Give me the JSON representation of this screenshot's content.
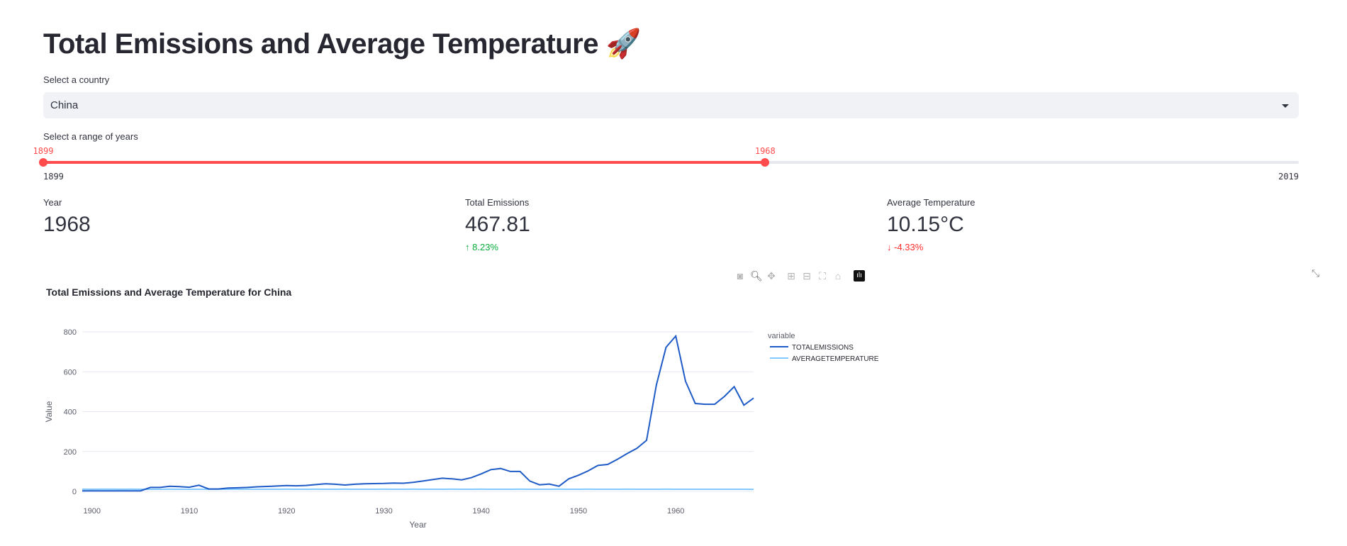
{
  "page": {
    "title": "Total Emissions and Average Temperature",
    "title_icon": "rocket-emoji",
    "title_emoji": "🚀"
  },
  "country_select": {
    "label": "Select a country",
    "value": "China"
  },
  "year_slider": {
    "label": "Select a range of years",
    "min": 1899,
    "max": 2019,
    "low": 1899,
    "high": 1968,
    "min_label": "1899",
    "max_label": "2019",
    "low_label": "1899",
    "high_label": "1968",
    "accent": "#ff4b4b"
  },
  "metrics": [
    {
      "label": "Year",
      "value": "1968",
      "delta": ""
    },
    {
      "label": "Total Emissions",
      "value": "467.81",
      "delta": "8.23%",
      "delta_dir": "up",
      "delta_color": "#09ab3b"
    },
    {
      "label": "Average Temperature",
      "value": "10.15°C",
      "delta": "-4.33%",
      "delta_dir": "down",
      "delta_color": "#ff2b2b"
    }
  ],
  "toolbar": [
    "camera-icon",
    "zoom-icon",
    "pan-icon",
    "zoom-in-icon",
    "zoom-out-icon",
    "autoscale-icon",
    "reset-axes-icon",
    "plotly-logo-icon"
  ],
  "chart_data": {
    "type": "line",
    "title": "Total Emissions and Average Temperature for China",
    "xlabel": "Year",
    "ylabel": "Value",
    "xlim": [
      1899,
      1968
    ],
    "ylim": [
      -70,
      900
    ],
    "xticks": [
      1900,
      1910,
      1920,
      1930,
      1940,
      1950,
      1960
    ],
    "yticks": [
      0,
      200,
      400,
      600,
      800
    ],
    "grid": true,
    "legend": {
      "title": "variable",
      "placement": "right"
    },
    "x": [
      1899,
      1900,
      1901,
      1902,
      1903,
      1904,
      1905,
      1906,
      1907,
      1908,
      1909,
      1910,
      1911,
      1912,
      1913,
      1914,
      1915,
      1916,
      1917,
      1918,
      1919,
      1920,
      1921,
      1922,
      1923,
      1924,
      1925,
      1926,
      1927,
      1928,
      1929,
      1930,
      1931,
      1932,
      1933,
      1934,
      1935,
      1936,
      1937,
      1938,
      1939,
      1940,
      1941,
      1942,
      1943,
      1944,
      1945,
      1946,
      1947,
      1948,
      1949,
      1950,
      1951,
      1952,
      1953,
      1954,
      1955,
      1956,
      1957,
      1958,
      1959,
      1960,
      1961,
      1962,
      1963,
      1964,
      1965,
      1966,
      1967,
      1968
    ],
    "series": [
      {
        "name": "TOTALEMISSIONS",
        "color": "#1f5bc6",
        "values": [
          3,
          3,
          3,
          3,
          3,
          3,
          3,
          20,
          20,
          26,
          24,
          21,
          31,
          12,
          12,
          17,
          18,
          20,
          23,
          25,
          27,
          29,
          28,
          30,
          34,
          38,
          36,
          32,
          36,
          38,
          39,
          40,
          42,
          41,
          45,
          52,
          59,
          66,
          63,
          58,
          69,
          88,
          109,
          115,
          100,
          100,
          52,
          33,
          37,
          26,
          63,
          81,
          103,
          130,
          135,
          161,
          190,
          216,
          256,
          533,
          723,
          779,
          553,
          441,
          437,
          437,
          476,
          525,
          432.2,
          467.81
        ]
      },
      {
        "name": "AVERAGETEMPERATURE",
        "color": "#83c9ff",
        "values": [
          10.9,
          10.8,
          10.9,
          11,
          10.8,
          10.9,
          10.7,
          10.8,
          10.6,
          10.9,
          10.7,
          10.8,
          10.7,
          10.8,
          10.9,
          10.7,
          10.8,
          10.9,
          10.6,
          10.7,
          10.8,
          10.9,
          10.8,
          10.7,
          10.9,
          10.8,
          10.7,
          10.9,
          10.8,
          10.7,
          10.8,
          10.9,
          10.8,
          10.7,
          10.9,
          10.8,
          10.7,
          10.8,
          10.9,
          10.8,
          10.7,
          10.9,
          10.8,
          10.7,
          10.8,
          10.9,
          10.8,
          10.7,
          10.8,
          10.9,
          10.7,
          10.8,
          10.9,
          10.8,
          10.7,
          10.8,
          10.9,
          10.8,
          10.7,
          10.8,
          10.9,
          10.8,
          10.7,
          10.6,
          10.8,
          10.7,
          10.6,
          10.7,
          10.61,
          10.15
        ]
      }
    ]
  }
}
